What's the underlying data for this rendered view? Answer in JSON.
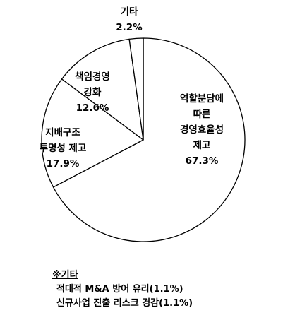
{
  "chart_data": {
    "type": "pie",
    "start_angle_deg": 270,
    "direction": "clockwise",
    "stroke_color": "#000000",
    "fill_color": "#ffffff",
    "slices": [
      {
        "lines": [
          "역할분담에",
          "따른",
          "경영효율성",
          "제고"
        ],
        "value_label": "67.3%",
        "value": 67.3
      },
      {
        "lines": [
          "지배구조",
          "투명성 제고"
        ],
        "value_label": "17.9%",
        "value": 17.9
      },
      {
        "lines": [
          "책임경영",
          "강화"
        ],
        "value_label": "12.6%",
        "value": 12.6
      },
      {
        "lines": [
          "기타"
        ],
        "value_label": "2.2%",
        "value": 2.2
      }
    ]
  },
  "footnote": {
    "title": "※기타",
    "items": [
      "적대적 M&A 방어 유리(1.1%)",
      "신규사업 진출 리스크 경감(1.1%)"
    ]
  }
}
